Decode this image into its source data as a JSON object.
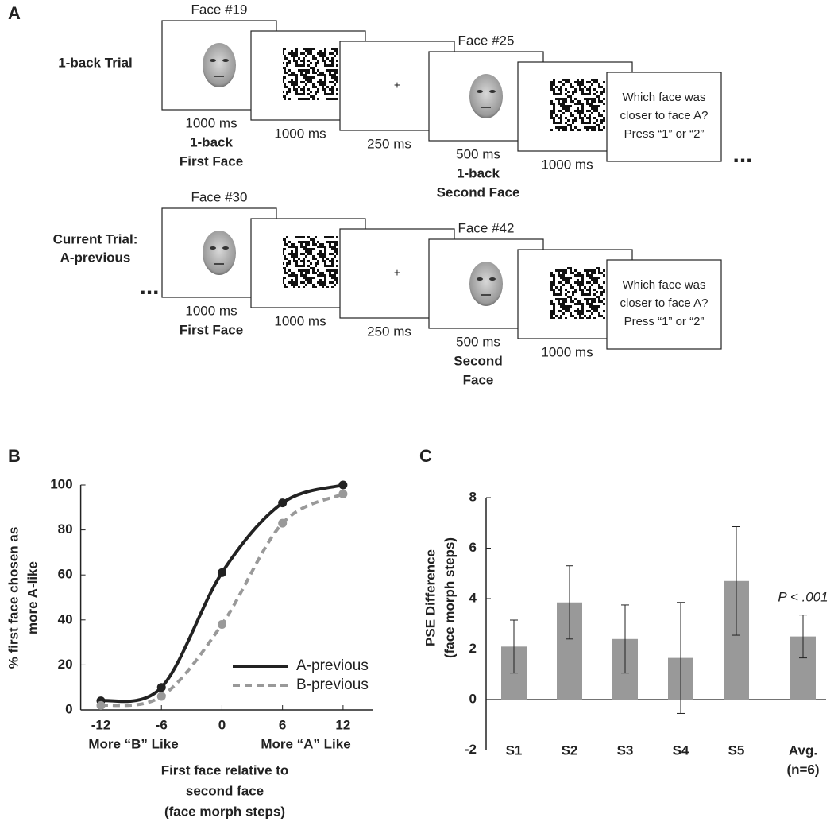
{
  "panel_a": {
    "label": "A",
    "rows": [
      {
        "label": [
          "1-back Trial"
        ],
        "ellipsis": "...",
        "frames": [
          {
            "title": "Face #19",
            "duration": "1000 ms",
            "caption": [
              "1-back",
              "First Face"
            ]
          },
          {
            "duration": "1000 ms"
          },
          {
            "center_text": "+",
            "duration": "250 ms"
          },
          {
            "title": "Face #25",
            "duration": "500 ms",
            "caption": [
              "1-back",
              "Second Face"
            ]
          },
          {
            "duration": "1000 ms"
          },
          {
            "prompt": [
              "Which face was",
              "closer to face A?",
              "Press “1” or “2”"
            ]
          }
        ]
      },
      {
        "label": [
          "Current Trial:",
          "A-previous"
        ],
        "ellipsis": "...",
        "frames": [
          {
            "title": "Face #30",
            "duration": "1000 ms",
            "caption": [
              "First Face"
            ]
          },
          {
            "duration": "1000 ms"
          },
          {
            "center_text": "+",
            "duration": "250 ms"
          },
          {
            "title": "Face #42",
            "duration": "500 ms",
            "caption": [
              "Second",
              "Face"
            ]
          },
          {
            "duration": "1000 ms"
          },
          {
            "prompt": [
              "Which face was",
              "closer to face A?",
              "Press “1” or “2”"
            ]
          }
        ]
      }
    ]
  },
  "chart_data": [
    {
      "type": "line",
      "panel_label": "B",
      "x": [
        -12,
        -6,
        0,
        6,
        12
      ],
      "series": [
        {
          "name": "A-previous",
          "color": "#222222",
          "line_style": "solid",
          "values": [
            4,
            10,
            61,
            92,
            100
          ]
        },
        {
          "name": "B-previous",
          "color": "#999999",
          "line_style": "dashed",
          "values": [
            2,
            6,
            38,
            83,
            96
          ]
        }
      ],
      "xlim": [
        -14,
        15
      ],
      "xticks": [
        -12,
        -6,
        0,
        6,
        12
      ],
      "ylim": [
        0,
        100
      ],
      "yticks": [
        0,
        20,
        40,
        60,
        80,
        100
      ],
      "ylabel": [
        "% first face chosen as",
        "more A-like"
      ],
      "x_end_labels": [
        "More “B” Like",
        "More “A” Like"
      ],
      "xlabel": [
        "First face relative to",
        "second face",
        "(face morph steps)"
      ],
      "legend": "lower right"
    },
    {
      "type": "bar",
      "panel_label": "C",
      "categories": [
        [
          "S1"
        ],
        [
          "S2"
        ],
        [
          "S3"
        ],
        [
          "S4"
        ],
        [
          "S5"
        ],
        [
          "Avg.",
          "(n=6)"
        ]
      ],
      "values": [
        2.1,
        3.85,
        2.4,
        1.65,
        4.7,
        2.5
      ],
      "errors": [
        1.05,
        1.45,
        1.35,
        2.2,
        2.15,
        0.85
      ],
      "color": "#999999",
      "ylim": [
        -2,
        8
      ],
      "yticks": [
        -2,
        0,
        2,
        4,
        6,
        8
      ],
      "ylabel": [
        "PSE Difference",
        "(face morph steps)"
      ],
      "annotation": "P < .001"
    }
  ]
}
